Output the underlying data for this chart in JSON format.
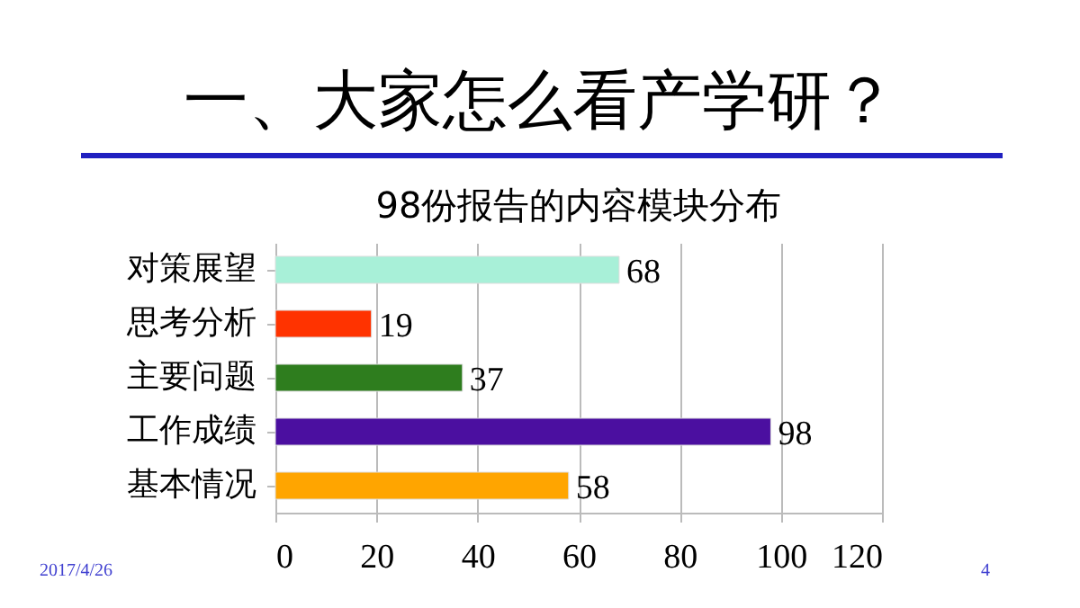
{
  "chart_data": {
    "type": "bar",
    "orientation": "horizontal",
    "title": "一、大家怎么看产学研？",
    "subtitle": "98份报告的内容模块分布",
    "categories": [
      "对策展望",
      "思考分析",
      "主要问题",
      "工作成绩",
      "基本情况"
    ],
    "values": [
      68,
      19,
      37,
      98,
      58
    ],
    "colors": [
      "#a8f0d8",
      "#ff3300",
      "#2e7d1e",
      "#4b0fa0",
      "#ffa500"
    ],
    "xlim": [
      0,
      120
    ],
    "xticks": [
      0,
      20,
      40,
      60,
      80,
      100,
      120
    ],
    "grid": "x",
    "data_labels": true,
    "annotations": [
      "2017/4/26",
      "4"
    ]
  }
}
